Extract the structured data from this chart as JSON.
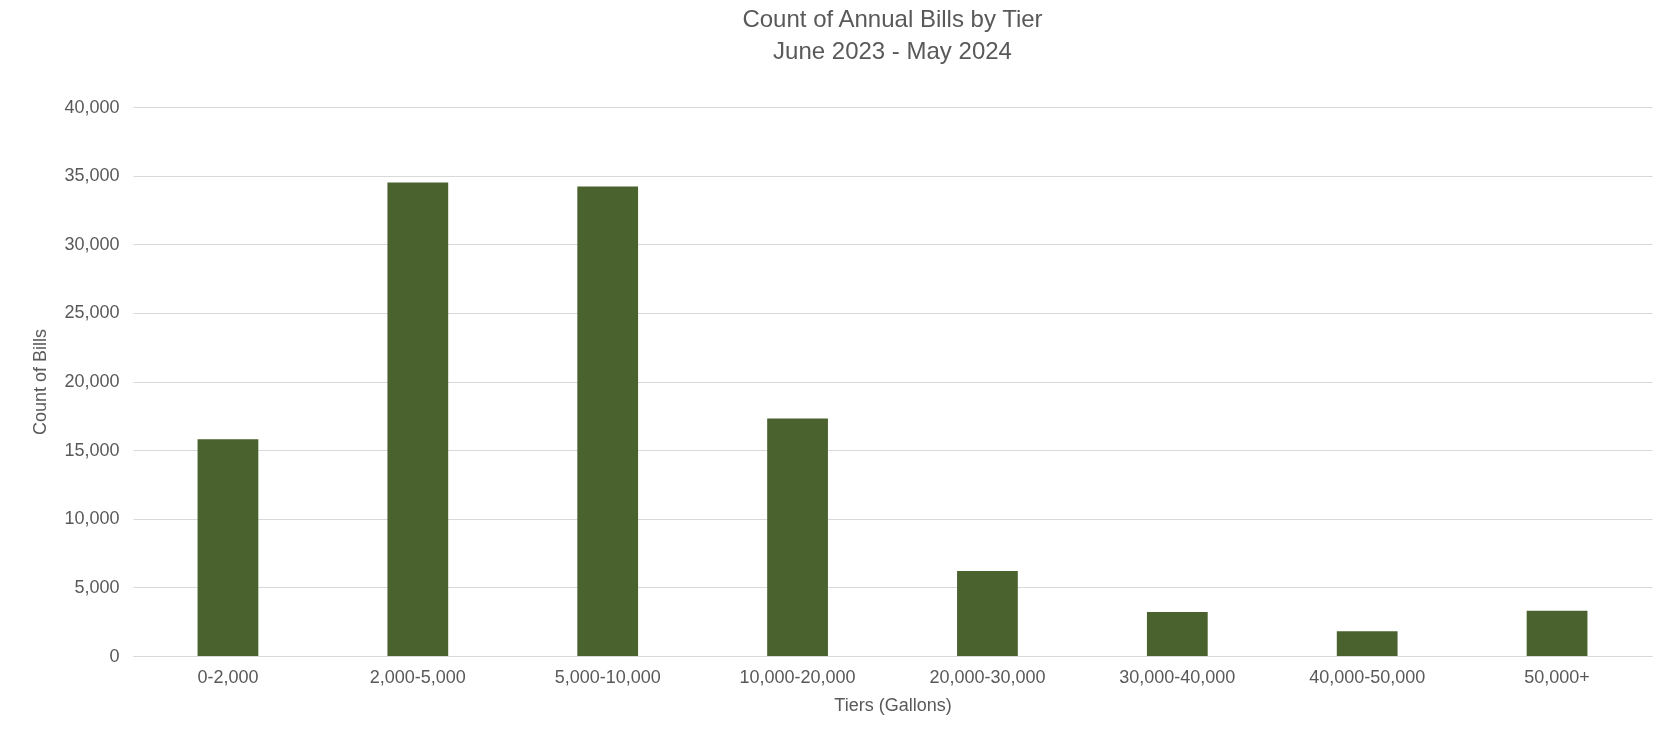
{
  "chart_data": {
    "type": "bar",
    "title": "Count of Annual Bills by Tier",
    "subtitle": "June 2023 - May 2024",
    "xlabel": "Tiers (Gallons)",
    "ylabel": "Count of Bills",
    "categories": [
      "0-2,000",
      "2,000-5,000",
      "5,000-10,000",
      "10,000-20,000",
      "20,000-30,000",
      "30,000-40,000",
      "40,000-50,000",
      "50,000+"
    ],
    "values": [
      15800,
      34500,
      34200,
      17300,
      6200,
      3200,
      1800,
      3300
    ],
    "color": "#4a622e",
    "ylim": [
      0,
      40000
    ],
    "yticks": [
      0,
      {
        "value": 5000,
        "label": "5,000"
      },
      {
        "value": 10000,
        "label": "10,000"
      },
      {
        "value": 15000,
        "label": "15,000"
      },
      {
        "value": 20000,
        "label": "20,000"
      },
      {
        "value": 25000,
        "label": "25,000"
      },
      {
        "value": 30000,
        "label": "30,000"
      },
      {
        "value": 35000,
        "label": "35,000"
      },
      {
        "value": 40000,
        "label": "40,000"
      }
    ],
    "grid": "y"
  }
}
